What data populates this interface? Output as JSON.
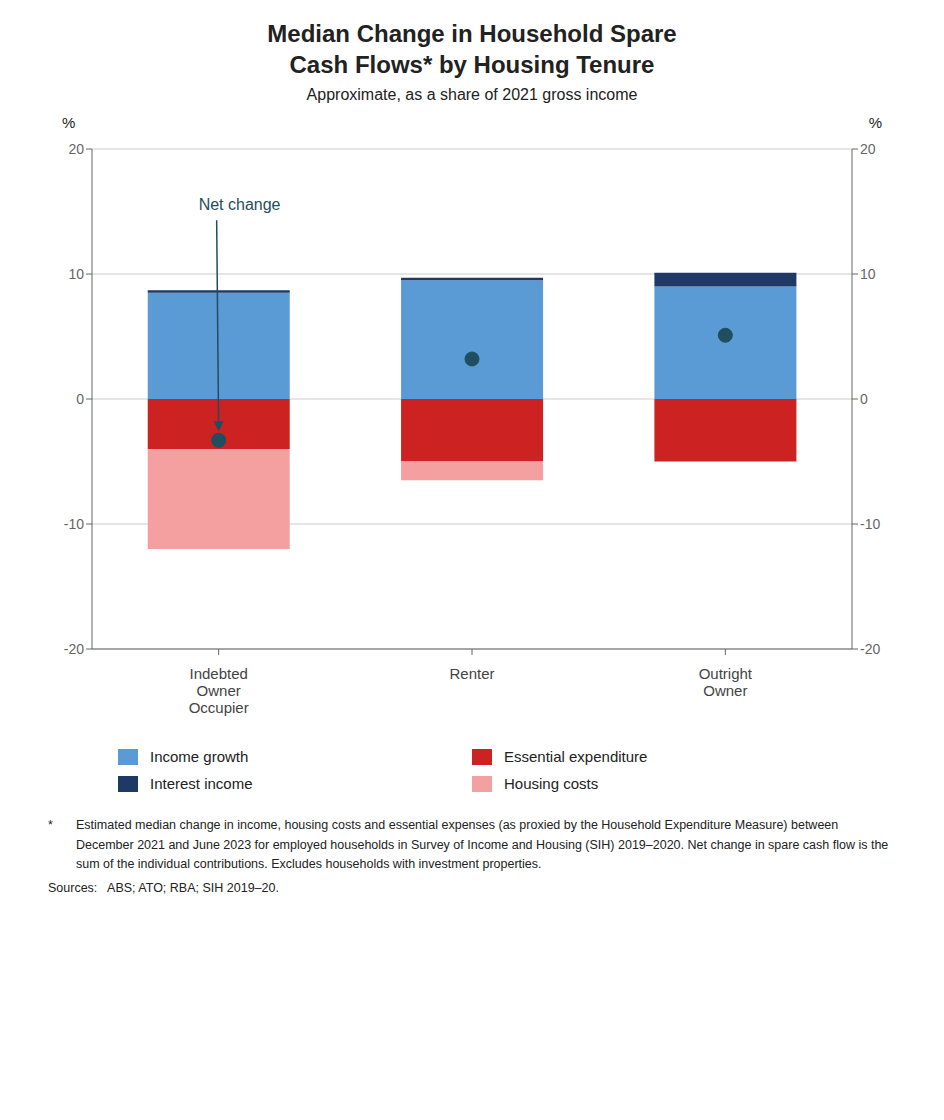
{
  "chart_data": {
    "type": "bar",
    "title": "Median Change in Household Spare\nCash Flows* by Housing Tenure",
    "subtitle": "Approximate, as a share of 2021 gross income",
    "categories": [
      "Indebted\nOwner\nOccupier",
      "Renter",
      "Outright\nOwner"
    ],
    "stacked": true,
    "series": [
      {
        "name": "Income growth",
        "color": "#5B9BD5",
        "values": [
          8.5,
          9.5,
          9.0
        ]
      },
      {
        "name": "Interest income",
        "color": "#1F3864",
        "values": [
          0.2,
          0.2,
          1.1
        ]
      },
      {
        "name": "Essential expenditure",
        "color": "#CC2222",
        "values": [
          -4.0,
          -5.0,
          -5.0
        ]
      },
      {
        "name": "Housing costs",
        "color": "#F4A0A0",
        "values": [
          -8.0,
          -1.5,
          0.0
        ]
      },
      {
        "name": "Net change",
        "type": "scatter",
        "marker": "circle",
        "color": "#1F4E60",
        "values": [
          -3.3,
          3.2,
          5.1
        ]
      }
    ],
    "y_label": "%",
    "y2_label": "%",
    "ylim": [
      -20,
      20
    ],
    "yticks": [
      -20,
      -10,
      0,
      10,
      20
    ],
    "y2lim": [
      -20,
      20
    ],
    "y2ticks": [
      -20,
      -10,
      0,
      10,
      20
    ],
    "grid": true,
    "footnote": {
      "marker": "*",
      "text": "Estimated median change in income, housing costs and essential expenses (as proxied by the Household Expenditure Measure) between December 2021 and June 2023 for employed households in Survey of Income and Housing (SIH) 2019–2020. Net change in spare cash flow is the sum of the individual contributions. Excludes households with investment properties."
    },
    "sources": "Sources:   ABS; ATO; RBA; SIH 2019–20."
  }
}
